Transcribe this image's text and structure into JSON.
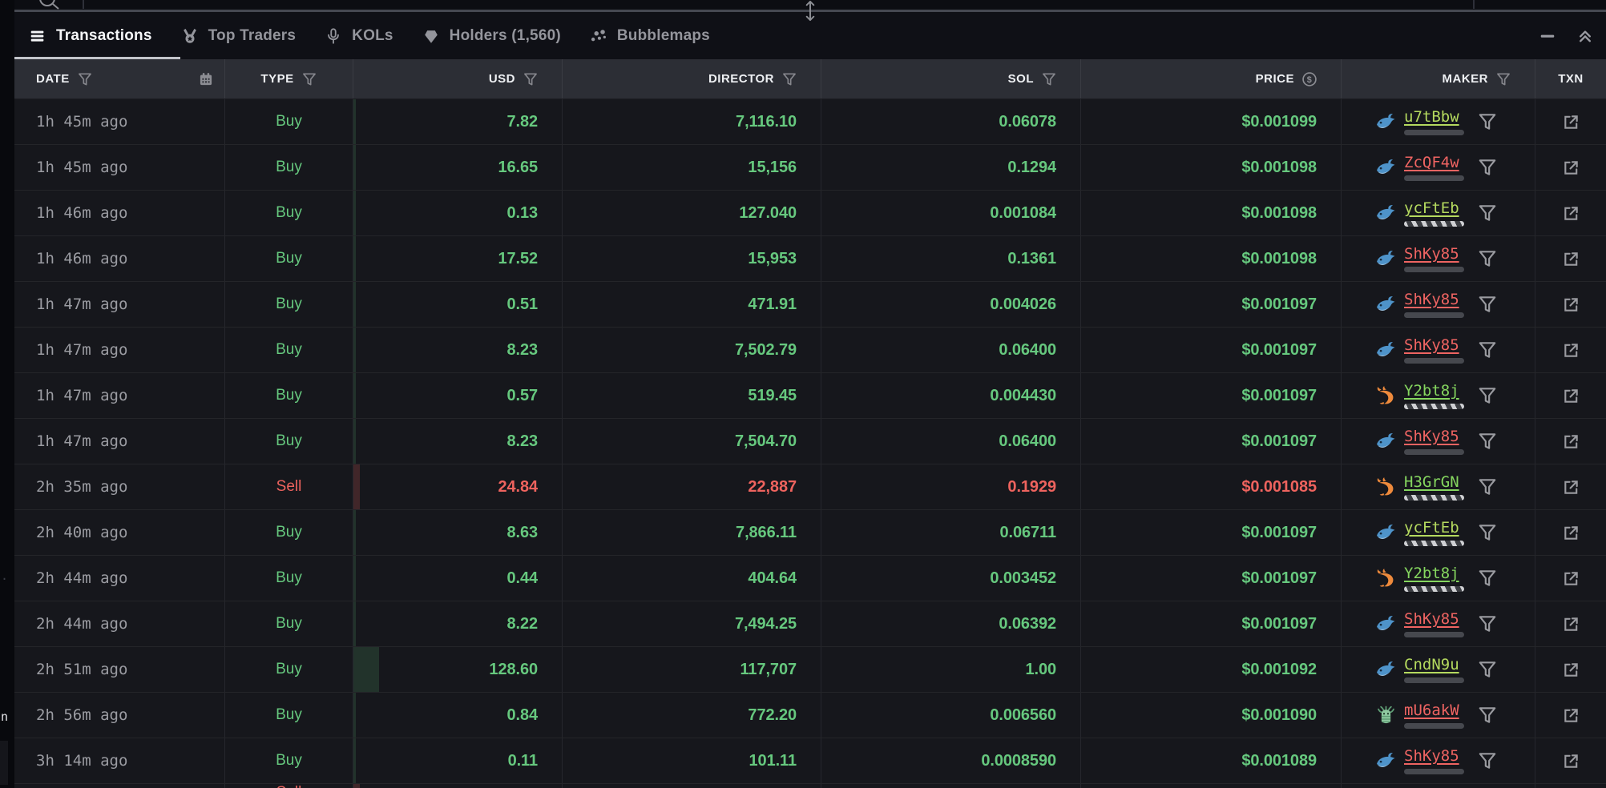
{
  "colors": {
    "buy": "#66c87e",
    "sell": "#ee635e",
    "maker_lime": "#b5da5f",
    "maker_green": "#85d65f",
    "maker_red": "#ef6462",
    "active_tab_underline": "#c2c4ca",
    "header_bg": "#2c2e35",
    "row_bg": "#16171c",
    "dolphin_blue": "#4e93c9",
    "shrimp_orange": "#ee8a3c",
    "squid_green": "#8fc9a0"
  },
  "background_fragments": [
    "n",
    "."
  ],
  "tabs": [
    {
      "label": "Transactions",
      "icon": "hamburger-icon",
      "active": true
    },
    {
      "label": "Top Traders",
      "icon": "medal-icon",
      "active": false
    },
    {
      "label": "KOLs",
      "icon": "microphone-icon",
      "active": false
    },
    {
      "label": "Holders (1,560)",
      "icon": "gem-icon",
      "active": false
    },
    {
      "label": "Bubblemaps",
      "icon": "bubbles-icon",
      "active": false
    }
  ],
  "window_controls": {
    "minimize": "minus-icon",
    "collapse": "collapse-up-icon"
  },
  "columns": [
    {
      "key": "date",
      "label": "DATE",
      "align": "left",
      "filter": true,
      "extra": "calendar-icon"
    },
    {
      "key": "type",
      "label": "TYPE",
      "align": "center",
      "filter": true,
      "extra": null
    },
    {
      "key": "usd",
      "label": "USD",
      "align": "right",
      "filter": true,
      "extra": null
    },
    {
      "key": "director",
      "label": "DIRECTOR",
      "align": "right",
      "filter": true,
      "extra": null
    },
    {
      "key": "sol",
      "label": "SOL",
      "align": "right",
      "filter": true,
      "extra": null
    },
    {
      "key": "price",
      "label": "PRICE",
      "align": "right",
      "filter": false,
      "extra": "dollar-circle-icon"
    },
    {
      "key": "maker",
      "label": "MAKER",
      "align": "right",
      "filter": true,
      "extra": null
    },
    {
      "key": "txn",
      "label": "TXN",
      "align": "center",
      "filter": false,
      "extra": null
    }
  ],
  "rows": [
    {
      "time": "1h 45m ago",
      "type": "Buy",
      "usd": "7.82",
      "director": "7,116.10",
      "sol": "0.06078",
      "price": "$0.001099",
      "maker": {
        "name": "u7tBbw",
        "color": "lime",
        "icon": "dolphin-icon",
        "bar": {
          "style": "solid",
          "pct": 13
        }
      },
      "heat": {
        "tone": "green",
        "width": 3
      }
    },
    {
      "time": "1h 45m ago",
      "type": "Buy",
      "usd": "16.65",
      "director": "15,156",
      "sol": "0.1294",
      "price": "$0.001098",
      "maker": {
        "name": "ZcQF4w",
        "color": "red",
        "icon": "dolphin-icon",
        "bar": {
          "style": "solid",
          "pct": 22
        }
      },
      "heat": {
        "tone": "green",
        "width": 3
      }
    },
    {
      "time": "1h 46m ago",
      "type": "Buy",
      "usd": "0.13",
      "director": "127.040",
      "sol": "0.001084",
      "price": "$0.001098",
      "maker": {
        "name": "ycFtEb",
        "color": "lime",
        "icon": "dolphin-icon",
        "bar": {
          "style": "hatched",
          "pct": 100
        }
      },
      "heat": {
        "tone": "green",
        "width": 3
      }
    },
    {
      "time": "1h 46m ago",
      "type": "Buy",
      "usd": "17.52",
      "director": "15,953",
      "sol": "0.1361",
      "price": "$0.001098",
      "maker": {
        "name": "ShKy85",
        "color": "red",
        "icon": "dolphin-icon",
        "bar": {
          "style": "solid",
          "pct": 25
        }
      },
      "heat": {
        "tone": "green",
        "width": 3
      }
    },
    {
      "time": "1h 47m ago",
      "type": "Buy",
      "usd": "0.51",
      "director": "471.91",
      "sol": "0.004026",
      "price": "$0.001097",
      "maker": {
        "name": "ShKy85",
        "color": "red",
        "icon": "dolphin-icon",
        "bar": {
          "style": "solid",
          "pct": 25
        }
      },
      "heat": {
        "tone": "green",
        "width": 3
      }
    },
    {
      "time": "1h 47m ago",
      "type": "Buy",
      "usd": "8.23",
      "director": "7,502.79",
      "sol": "0.06400",
      "price": "$0.001097",
      "maker": {
        "name": "ShKy85",
        "color": "red",
        "icon": "dolphin-icon",
        "bar": {
          "style": "solid",
          "pct": 25
        }
      },
      "heat": {
        "tone": "green",
        "width": 3
      }
    },
    {
      "time": "1h 47m ago",
      "type": "Buy",
      "usd": "0.57",
      "director": "519.45",
      "sol": "0.004430",
      "price": "$0.001097",
      "maker": {
        "name": "Y2bt8j",
        "color": "green",
        "icon": "shrimp-icon",
        "bar": {
          "style": "hatched",
          "pct": 100
        }
      },
      "heat": {
        "tone": "green",
        "width": 3
      }
    },
    {
      "time": "1h 47m ago",
      "type": "Buy",
      "usd": "8.23",
      "director": "7,504.70",
      "sol": "0.06400",
      "price": "$0.001097",
      "maker": {
        "name": "ShKy85",
        "color": "red",
        "icon": "dolphin-icon",
        "bar": {
          "style": "solid",
          "pct": 25
        }
      },
      "heat": {
        "tone": "green",
        "width": 3
      }
    },
    {
      "time": "2h 35m ago",
      "type": "Sell",
      "usd": "24.84",
      "director": "22,887",
      "sol": "0.1929",
      "price": "$0.001085",
      "maker": {
        "name": "H3GrGN",
        "color": "green",
        "icon": "shrimp-icon",
        "bar": {
          "style": "hatched",
          "pct": 100
        }
      },
      "heat": {
        "tone": "red",
        "width": 8
      }
    },
    {
      "time": "2h 40m ago",
      "type": "Buy",
      "usd": "8.63",
      "director": "7,866.11",
      "sol": "0.06711",
      "price": "$0.001097",
      "maker": {
        "name": "ycFtEb",
        "color": "lime",
        "icon": "dolphin-icon",
        "bar": {
          "style": "hatched",
          "pct": 100
        }
      },
      "heat": {
        "tone": "green",
        "width": 3
      }
    },
    {
      "time": "2h 44m ago",
      "type": "Buy",
      "usd": "0.44",
      "director": "404.64",
      "sol": "0.003452",
      "price": "$0.001097",
      "maker": {
        "name": "Y2bt8j",
        "color": "green",
        "icon": "shrimp-icon",
        "bar": {
          "style": "hatched",
          "pct": 100
        }
      },
      "heat": {
        "tone": "green",
        "width": 3
      }
    },
    {
      "time": "2h 44m ago",
      "type": "Buy",
      "usd": "8.22",
      "director": "7,494.25",
      "sol": "0.06392",
      "price": "$0.001097",
      "maker": {
        "name": "ShKy85",
        "color": "red",
        "icon": "dolphin-icon",
        "bar": {
          "style": "solid",
          "pct": 25
        }
      },
      "heat": {
        "tone": "green",
        "width": 3
      }
    },
    {
      "time": "2h 51m ago",
      "type": "Buy",
      "usd": "128.60",
      "director": "117,707",
      "sol": "1.00",
      "price": "$0.001092",
      "maker": {
        "name": "CndN9u",
        "color": "lime",
        "icon": "dolphin-icon",
        "bar": {
          "style": "solid",
          "pct": 8
        }
      },
      "heat": {
        "tone": "green",
        "width": 32
      }
    },
    {
      "time": "2h 56m ago",
      "type": "Buy",
      "usd": "0.84",
      "director": "772.20",
      "sol": "0.006560",
      "price": "$0.001090",
      "maker": {
        "name": "mU6akW",
        "color": "red",
        "icon": "squid-icon",
        "bar": {
          "style": "solid",
          "pct": 48
        }
      },
      "heat": {
        "tone": "green",
        "width": 3
      }
    },
    {
      "time": "3h 14m ago",
      "type": "Buy",
      "usd": "0.11",
      "director": "101.11",
      "sol": "0.0008590",
      "price": "$0.001089",
      "maker": {
        "name": "ShKy85",
        "color": "red",
        "icon": "dolphin-icon",
        "bar": {
          "style": "solid",
          "pct": 25
        }
      },
      "heat": {
        "tone": "green",
        "width": 3
      }
    }
  ],
  "partial_row": {
    "visible_height": 5,
    "heat": {
      "tone": "red",
      "width": 8
    }
  }
}
